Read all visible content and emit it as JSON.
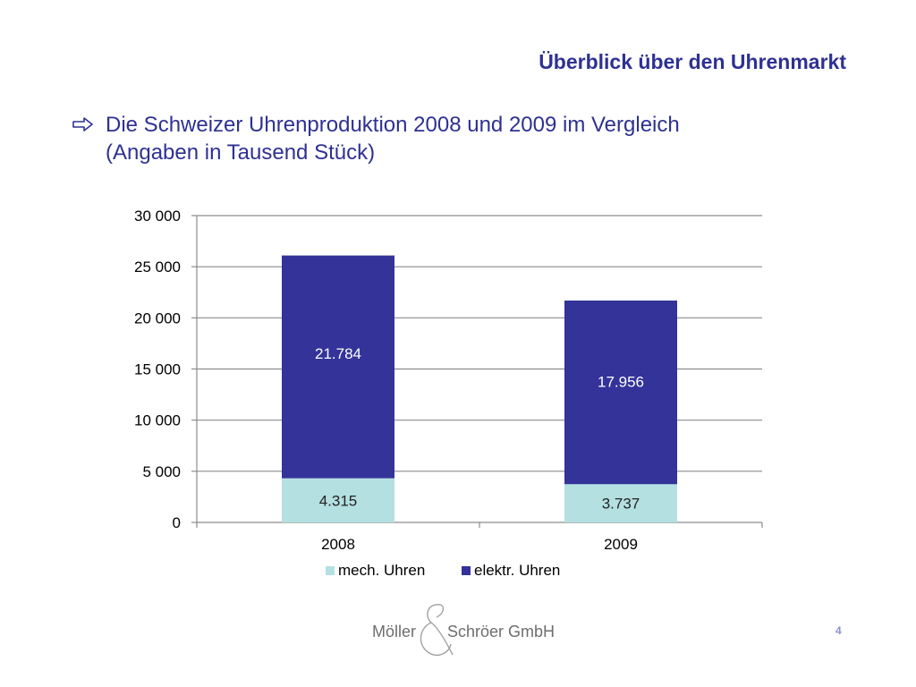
{
  "slide": {
    "title": "Überblick über den Uhrenmarkt",
    "bullet_line1": "Die Schweizer Uhrenproduktion 2008 und 2009 im Vergleich",
    "bullet_line2": "(Angaben in Tausend Stück)",
    "page_number": "4"
  },
  "logo": {
    "left": "Möller",
    "right": "Schröer GmbH"
  },
  "colors": {
    "title": "#2e3192",
    "mech": "#b4e0e2",
    "elektr": "#333399",
    "grid": "#8c8c8c"
  },
  "chart_data": {
    "type": "bar",
    "stacked": true,
    "categories": [
      "2008",
      "2009"
    ],
    "series": [
      {
        "name": "mech. Uhren",
        "values": [
          4315,
          3737
        ],
        "labels": [
          "4.315",
          "3.737"
        ],
        "color": "#b4e0e2"
      },
      {
        "name": "elektr. Uhren",
        "values": [
          21784,
          17956
        ],
        "labels": [
          "21.784",
          "17.956"
        ],
        "color": "#333399"
      }
    ],
    "ylim": [
      0,
      30000
    ],
    "yticks": [
      0,
      5000,
      10000,
      15000,
      20000,
      25000,
      30000
    ],
    "ytick_labels": [
      "0",
      "5 000",
      "10 000",
      "15 000",
      "20 000",
      "25 000",
      "30 000"
    ],
    "grid": true,
    "legend": "bottom"
  }
}
